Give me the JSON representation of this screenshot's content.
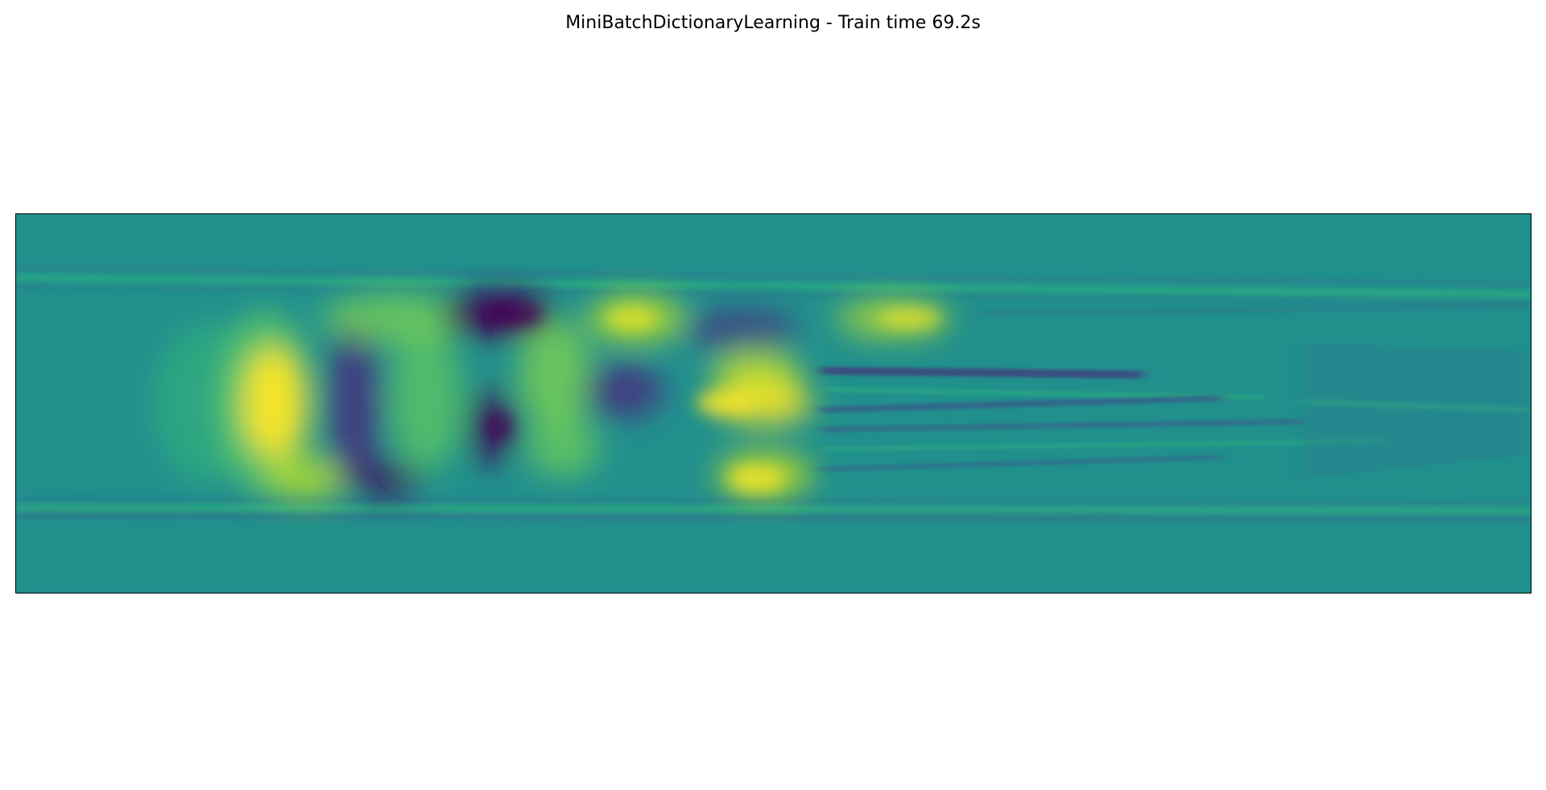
{
  "figure": {
    "title": "MiniBatchDictionaryLearning - Train time 69.2s"
  },
  "chart_data": {
    "type": "heatmap",
    "title": "MiniBatchDictionaryLearning - Train time 69.2s",
    "xlabel": "",
    "ylabel": "",
    "xticks": [],
    "yticks": [],
    "grid": false,
    "colormap": "viridis",
    "colors": {
      "background": "#21908d",
      "low": "#440154",
      "mid_low": "#3b528b",
      "mid": "#21908d",
      "mid_high": "#5ec962",
      "high": "#fde725"
    }
  }
}
